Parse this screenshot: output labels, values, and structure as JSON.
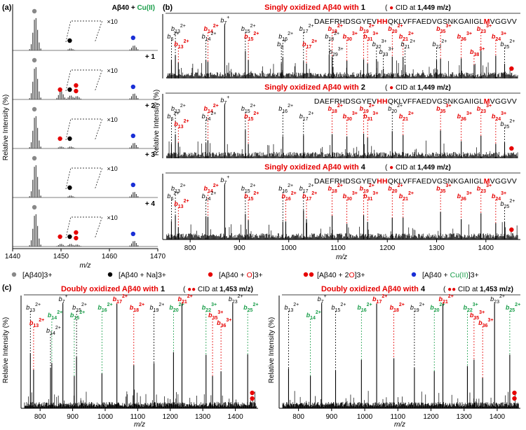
{
  "panel_labels": {
    "a": "(a)",
    "b": "(b)",
    "c": "(c)"
  },
  "colors": {
    "black": "#000000",
    "red": "#e60000",
    "green": "#1a9e4a",
    "gray": "#888888",
    "blue": "#1a2fd6"
  },
  "legend": [
    {
      "marker": "gray-dot",
      "label": "[Aβ40]3+"
    },
    {
      "marker": "black-dot",
      "label": "[Aβ40 + Na]3+"
    },
    {
      "marker": "red-dot",
      "label": "[Aβ40 + O]3+"
    },
    {
      "marker": "two-red-dots",
      "label": "[Aβ40 + 2O]3+"
    },
    {
      "marker": "blue-dot",
      "label": "[Aβ40 + Cu(II)]3+"
    }
  ],
  "sequence": "DAEFRHDSGYEVHHQKLVFFAEDVGSNKGAIIGLMVGGVV",
  "chart_data": [
    {
      "id": "a",
      "type": "spectrum-stack",
      "xlabel": "m/z",
      "ylabel": "Relative Intensity (%)",
      "xlim": [
        1440,
        1470
      ],
      "xticks": [
        1440,
        1450,
        1460,
        1470
      ],
      "zoom_label": "×10",
      "title_rich": "Aβ40 + Cu(II)",
      "rows": [
        {
          "label": "Aβ40 + Cu(II)",
          "peaks": [
            {
              "mz": 1444.5,
              "rel": 1.0,
              "ion": "[Aβ40]3+"
            },
            {
              "mz": 1451.8,
              "rel": 0.06,
              "ion": "[Aβ40 + Na]3+"
            },
            {
              "mz": 1464.9,
              "rel": 0.15,
              "ion": "[Aβ40 + Cu(II)]3+"
            }
          ]
        },
        {
          "label": "+ 1",
          "peaks": [
            {
              "mz": 1444.5,
              "rel": 1.0
            },
            {
              "mz": 1449.8,
              "rel": 0.25,
              "ion": "[Aβ40 + O]3+"
            },
            {
              "mz": 1451.8,
              "rel": 0.12
            },
            {
              "mz": 1453.1,
              "rel": 0.1,
              "ion": "[Aβ40 + 2O]3+"
            },
            {
              "mz": 1464.9,
              "rel": 0.18
            }
          ]
        },
        {
          "label": "+ 2",
          "peaks": [
            {
              "mz": 1444.5,
              "rel": 1.0
            },
            {
              "mz": 1449.8,
              "rel": 0.06
            },
            {
              "mz": 1451.8,
              "rel": 0.06
            },
            {
              "mz": 1464.9,
              "rel": 0.17
            }
          ]
        },
        {
          "label": "+ 3",
          "peaks": [
            {
              "mz": 1444.5,
              "rel": 1.0
            },
            {
              "mz": 1451.8,
              "rel": 0.06
            },
            {
              "mz": 1464.9,
              "rel": 0.17
            }
          ]
        },
        {
          "label": "+ 4",
          "peaks": [
            {
              "mz": 1444.5,
              "rel": 1.0
            },
            {
              "mz": 1449.8,
              "rel": 0.08
            },
            {
              "mz": 1451.8,
              "rel": 0.08
            },
            {
              "mz": 1453.1,
              "rel": 0.06
            },
            {
              "mz": 1464.9,
              "rel": 0.17
            }
          ]
        }
      ]
    },
    {
      "id": "b",
      "type": "spectrum-stack",
      "xlabel": "m/z",
      "ylabel": "Relative Intensity (%)",
      "xlim": [
        750,
        1470
      ],
      "xticks": [
        800,
        900,
        1000,
        1100,
        1200,
        1300,
        1400
      ],
      "rows": [
        {
          "title_pre": "Singly oxidized Aβ40 with ",
          "title_num": "1",
          "cid": "CID at ",
          "cid_val": "1,449 m/z",
          "labels": [
            {
              "t": "b132+",
              "c": "k",
              "mz": 770,
              "lv": 0
            },
            {
              "t": "b62+",
              "c": "k",
              "mz": 762,
              "lv": 1
            },
            {
              "t": "b132+",
              "c": "r",
              "mz": 776,
              "lv": 2
            },
            {
              "t": "b7+",
              "c": "k",
              "mz": 870,
              "lv": -1
            },
            {
              "t": "b142+",
              "c": "r",
              "mz": 836,
              "lv": 0
            },
            {
              "t": "b142+",
              "c": "k",
              "mz": 832,
              "lv": 1
            },
            {
              "t": "b152+",
              "c": "k",
              "mz": 912,
              "lv": 0
            },
            {
              "t": "b152+",
              "c": "r",
              "mz": 918,
              "lv": 1
            },
            {
              "t": "b162+",
              "c": "k",
              "mz": 988,
              "lv": 1
            },
            {
              "t": "b8+",
              "c": "k",
              "mz": 985,
              "lv": 2
            },
            {
              "t": "b172+",
              "c": "k",
              "mz": 1030,
              "lv": 0
            },
            {
              "t": "b172+",
              "c": "r",
              "mz": 1036,
              "lv": 2
            },
            {
              "t": "b182+",
              "c": "r",
              "mz": 1088,
              "lv": 0
            },
            {
              "t": "b182+",
              "c": "k",
              "mz": 1082,
              "lv": 1
            },
            {
              "t": "b293+",
              "c": "k",
              "mz": 1090,
              "lv": 3
            },
            {
              "t": "b303+",
              "c": "r",
              "mz": 1118,
              "lv": 1
            },
            {
              "t": "b192+",
              "c": "r",
              "mz": 1152,
              "lv": 0
            },
            {
              "t": "b313+",
              "c": "r",
              "mz": 1160,
              "lv": 1
            },
            {
              "t": "b202+",
              "c": "r",
              "mz": 1210,
              "lv": 0
            },
            {
              "t": "b212+",
              "c": "r",
              "mz": 1232,
              "lv": 1
            },
            {
              "t": "b212+",
              "c": "k",
              "mz": 1236,
              "lv": 2
            },
            {
              "t": "b323+",
              "c": "k",
              "mz": 1178,
              "lv": 2
            },
            {
              "t": "b333+",
              "c": "k",
              "mz": 1192,
              "lv": 3
            },
            {
              "t": "b353+",
              "c": "r",
              "mz": 1308,
              "lv": 0
            },
            {
              "t": "b222+",
              "c": "k",
              "mz": 1300,
              "lv": 2
            },
            {
              "t": "b363+",
              "c": "r",
              "mz": 1350,
              "lv": 1
            },
            {
              "t": "b233+",
              "c": "r",
              "mz": 1390,
              "lv": 0
            },
            {
              "t": "b383+",
              "c": "r",
              "mz": 1376,
              "lv": 3
            },
            {
              "t": "b243+",
              "c": "r",
              "mz": 1420,
              "lv": 1
            },
            {
              "t": "b252+",
              "c": "k",
              "mz": 1438,
              "lv": 2
            }
          ]
        },
        {
          "title_pre": "Singly oxidized Aβ40 with ",
          "title_num": "2",
          "cid": "CID at ",
          "cid_val": "1,449 m/z",
          "labels": [
            {
              "t": "b132+",
              "c": "k",
              "mz": 770,
              "lv": 0
            },
            {
              "t": "b62+",
              "c": "k",
              "mz": 762,
              "lv": 1
            },
            {
              "t": "b132+",
              "c": "r",
              "mz": 776,
              "lv": 2
            },
            {
              "t": "b7+",
              "c": "k",
              "mz": 870,
              "lv": -1
            },
            {
              "t": "b142+",
              "c": "r",
              "mz": 836,
              "lv": 0
            },
            {
              "t": "b142+",
              "c": "k",
              "mz": 832,
              "lv": 1
            },
            {
              "t": "b152+",
              "c": "k",
              "mz": 912,
              "lv": 0
            },
            {
              "t": "b152+",
              "c": "r",
              "mz": 918,
              "lv": 1
            },
            {
              "t": "b162+",
              "c": "k",
              "mz": 988,
              "lv": 0
            },
            {
              "t": "b172+",
              "c": "k",
              "mz": 1030,
              "lv": 1
            },
            {
              "t": "b182+",
              "c": "r",
              "mz": 1088,
              "lv": 0
            },
            {
              "t": "b303+",
              "c": "r",
              "mz": 1118,
              "lv": 1
            },
            {
              "t": "b192+",
              "c": "r",
              "mz": 1152,
              "lv": 0
            },
            {
              "t": "b313+",
              "c": "r",
              "mz": 1160,
              "lv": 1
            },
            {
              "t": "b202+",
              "c": "k",
              "mz": 1210,
              "lv": 0
            },
            {
              "t": "b212+",
              "c": "r",
              "mz": 1232,
              "lv": 1
            },
            {
              "t": "b353+",
              "c": "r",
              "mz": 1308,
              "lv": 0
            },
            {
              "t": "b363+",
              "c": "r",
              "mz": 1350,
              "lv": 1
            },
            {
              "t": "b233+",
              "c": "r",
              "mz": 1390,
              "lv": 0
            },
            {
              "t": "b243+",
              "c": "r",
              "mz": 1420,
              "lv": 1
            },
            {
              "t": "b252+",
              "c": "k",
              "mz": 1438,
              "lv": 2
            }
          ]
        },
        {
          "title_pre": "Singly oxidized Aβ40 with ",
          "title_num": "4",
          "cid": "CID at ",
          "cid_val": "1,449 m/z",
          "labels": [
            {
              "t": "b132+",
              "c": "k",
              "mz": 770,
              "lv": 0
            },
            {
              "t": "b62+",
              "c": "k",
              "mz": 762,
              "lv": 1
            },
            {
              "t": "b132+",
              "c": "r",
              "mz": 776,
              "lv": 2
            },
            {
              "t": "b7+",
              "c": "k",
              "mz": 870,
              "lv": -1
            },
            {
              "t": "b142+",
              "c": "r",
              "mz": 836,
              "lv": 0
            },
            {
              "t": "b142+",
              "c": "k",
              "mz": 832,
              "lv": 1
            },
            {
              "t": "b152+",
              "c": "k",
              "mz": 912,
              "lv": 0
            },
            {
              "t": "b152+",
              "c": "r",
              "mz": 918,
              "lv": 1
            },
            {
              "t": "b162+",
              "c": "k",
              "mz": 988,
              "lv": 0
            },
            {
              "t": "b162+",
              "c": "r",
              "mz": 994,
              "lv": 1
            },
            {
              "t": "b172+",
              "c": "k",
              "mz": 1030,
              "lv": 0
            },
            {
              "t": "b172+",
              "c": "r",
              "mz": 1036,
              "lv": 1
            },
            {
              "t": "b182+",
              "c": "r",
              "mz": 1088,
              "lv": 0
            },
            {
              "t": "b303+",
              "c": "r",
              "mz": 1118,
              "lv": 1
            },
            {
              "t": "b192+",
              "c": "r",
              "mz": 1152,
              "lv": 0
            },
            {
              "t": "b313+",
              "c": "r",
              "mz": 1160,
              "lv": 1
            },
            {
              "t": "b202+",
              "c": "r",
              "mz": 1210,
              "lv": 0
            },
            {
              "t": "b212+",
              "c": "r",
              "mz": 1232,
              "lv": 1
            },
            {
              "t": "b353+",
              "c": "r",
              "mz": 1308,
              "lv": 0
            },
            {
              "t": "b363+",
              "c": "r",
              "mz": 1350,
              "lv": 1
            },
            {
              "t": "b233+",
              "c": "r",
              "mz": 1390,
              "lv": 0
            },
            {
              "t": "b243+",
              "c": "r",
              "mz": 1420,
              "lv": 1
            },
            {
              "t": "b252+",
              "c": "k",
              "mz": 1438,
              "lv": 2
            }
          ]
        }
      ]
    },
    {
      "id": "c",
      "type": "spectrum-pair",
      "xlabel": "m/z",
      "ylabel": "Relative Intensity (%)",
      "xlim": [
        750,
        1470
      ],
      "xticks": [
        800,
        900,
        1000,
        1100,
        1200,
        1300,
        1400
      ],
      "spectra": [
        {
          "title_pre": "Doubly oxidized Aβ40 with ",
          "title_num": "1",
          "cid": "CID at ",
          "cid_val": "1,453 m/z",
          "labels": [
            {
              "t": "b7+",
              "c": "k",
              "mz": 870,
              "lv": -1
            },
            {
              "t": "b132+",
              "c": "k",
              "mz": 770,
              "lv": 0
            },
            {
              "t": "b142+",
              "c": "g",
              "mz": 836,
              "lv": 1
            },
            {
              "t": "b132+",
              "c": "r",
              "mz": 780,
              "lv": 2
            },
            {
              "t": "b142+",
              "c": "k",
              "mz": 832,
              "lv": 3
            },
            {
              "t": "b152+",
              "c": "k",
              "mz": 912,
              "lv": 0
            },
            {
              "t": "b152+",
              "c": "g",
              "mz": 905,
              "lv": 1
            },
            {
              "t": "b162+",
              "c": "g",
              "mz": 990,
              "lv": 0
            },
            {
              "t": "b172+",
              "c": "r",
              "mz": 1036,
              "lv": -1
            },
            {
              "t": "b182+",
              "c": "r",
              "mz": 1088,
              "lv": 0
            },
            {
              "t": "b192+",
              "c": "k",
              "mz": 1150,
              "lv": 0
            },
            {
              "t": "b202+",
              "c": "g",
              "mz": 1210,
              "lv": 0
            },
            {
              "t": "b212+",
              "c": "r",
              "mz": 1236,
              "lv": -1
            },
            {
              "t": "b223+",
              "c": "g",
              "mz": 1310,
              "lv": 0
            },
            {
              "t": "b232+",
              "c": "k",
              "mz": 1392,
              "lv": -1
            },
            {
              "t": "b252+",
              "c": "g",
              "mz": 1438,
              "lv": 0
            },
            {
              "t": "b353+",
              "c": "r",
              "mz": 1330,
              "lv": 1
            },
            {
              "t": "b363+",
              "c": "r",
              "mz": 1356,
              "lv": 2
            }
          ]
        },
        {
          "title_pre": "Doubly oxidized Aβ40 with ",
          "title_num": "4",
          "cid": "CID at ",
          "cid_val": "1,453 m/z",
          "labels": [
            {
              "t": "b7+",
              "c": "k",
              "mz": 870,
              "lv": -1
            },
            {
              "t": "b132+",
              "c": "k",
              "mz": 770,
              "lv": 0
            },
            {
              "t": "b142+",
              "c": "g",
              "mz": 836,
              "lv": 1
            },
            {
              "t": "b152+",
              "c": "k",
              "mz": 912,
              "lv": 0
            },
            {
              "t": "b162+",
              "c": "g",
              "mz": 990,
              "lv": 0
            },
            {
              "t": "b172+",
              "c": "r",
              "mz": 1036,
              "lv": -1
            },
            {
              "t": "b182+",
              "c": "r",
              "mz": 1088,
              "lv": 0
            },
            {
              "t": "b192+",
              "c": "k",
              "mz": 1150,
              "lv": 0
            },
            {
              "t": "b202+",
              "c": "g",
              "mz": 1210,
              "lv": 0
            },
            {
              "t": "b212+",
              "c": "r",
              "mz": 1236,
              "lv": -1
            },
            {
              "t": "b223+",
              "c": "g",
              "mz": 1310,
              "lv": 0
            },
            {
              "t": "b232+",
              "c": "k",
              "mz": 1392,
              "lv": -1
            },
            {
              "t": "b252+",
              "c": "g",
              "mz": 1438,
              "lv": 0
            },
            {
              "t": "b353+",
              "c": "r",
              "mz": 1330,
              "lv": 1
            },
            {
              "t": "b363+",
              "c": "r",
              "mz": 1356,
              "lv": 2
            }
          ]
        }
      ]
    }
  ]
}
